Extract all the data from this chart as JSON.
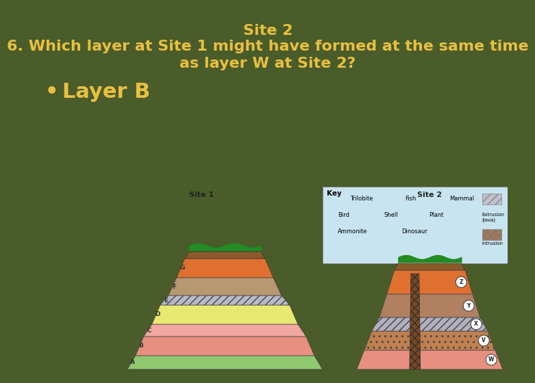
{
  "bg_color": "#4a5c2a",
  "title_line1": "Site 2",
  "title_line2": "6. Which layer at Site 1 might have formed at the same time",
  "title_line3": "as layer W at Site 2?",
  "bullet_dot": "•",
  "bullet_text": "Layer B",
  "title_color": "#e8c040",
  "bullet_color": "#e8c040",
  "title_fontsize": 16,
  "bullet_fontsize": 22,
  "site1_layers": {
    "A": {
      "color": "#90c870",
      "yb": 0.0,
      "yt": 0.12
    },
    "B": {
      "color": "#e89080",
      "yb": 0.12,
      "yt": 0.27
    },
    "C": {
      "color": "#f0a8a0",
      "yb": 0.27,
      "yt": 0.38
    },
    "D": {
      "color": "#e8e870",
      "yb": 0.38,
      "yt": 0.53
    },
    "E": {
      "color": "#b8b8c8",
      "hatch": "///",
      "yb": 0.53,
      "yt": 0.61
    },
    "F": {
      "color": "#b89870",
      "yb": 0.61,
      "yt": 0.75
    },
    "G": {
      "color": "#e07030",
      "yb": 0.75,
      "yt": 0.89
    }
  },
  "site2_layers": {
    "W": {
      "color": "#e89080",
      "yb": 0.0,
      "yt": 0.2
    },
    "V": {
      "color": "#c08050",
      "hatch": "..",
      "yb": 0.2,
      "yt": 0.37
    },
    "X": {
      "color": "#b0b0c0",
      "hatch": "///",
      "yb": 0.37,
      "yt": 0.49
    },
    "Y": {
      "color": "#b08060",
      "yb": 0.49,
      "yt": 0.68
    },
    "Z": {
      "color": "#e07030",
      "yb": 0.68,
      "yt": 0.87
    }
  },
  "key_color": "#c8e4f0",
  "panel_color": "#ffffff",
  "dirt_color": "#8B5a2B",
  "grass_color": "#228B22"
}
